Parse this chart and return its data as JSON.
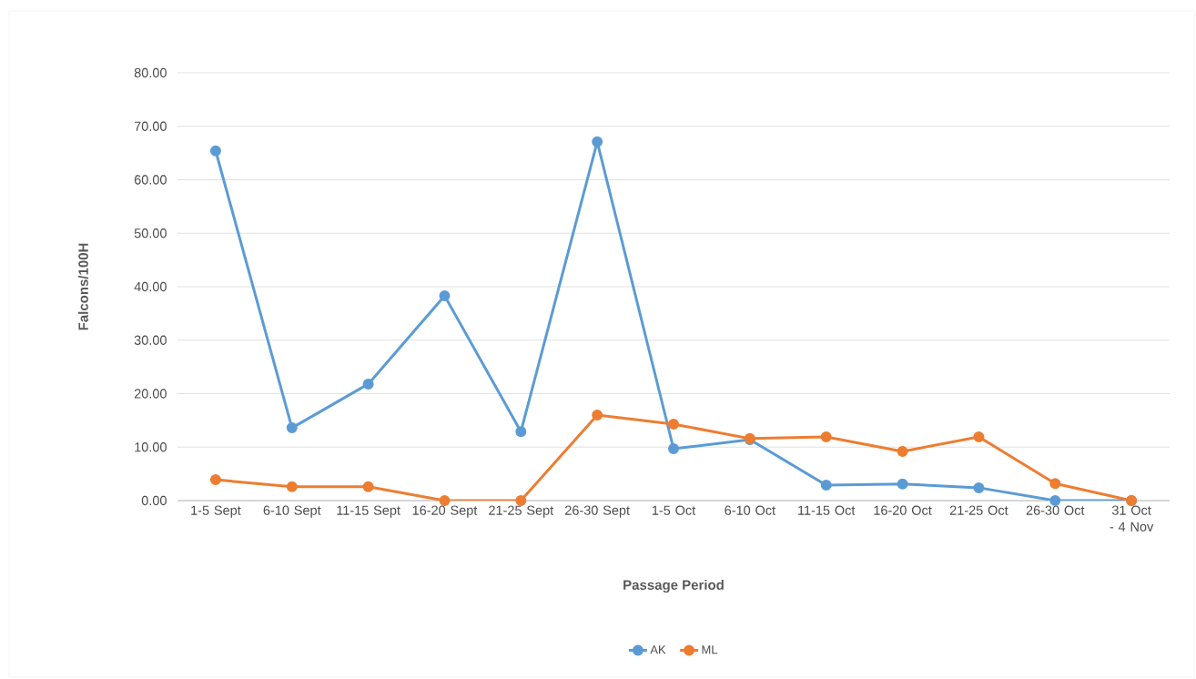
{
  "chart_data": {
    "type": "line",
    "xlabel": "Passage Period",
    "ylabel": "Falcons/100H",
    "categories": [
      "1-5 Sept",
      "6-10 Sept",
      "11-15 Sept",
      "16-20 Sept",
      "21-25 Sept",
      "26-30 Sept",
      "1-5 Oct",
      "6-10 Oct",
      "11-15 Oct",
      "16-20 Oct",
      "21-25 Oct",
      "26-30 Oct",
      "31 Oct - 4 Nov"
    ],
    "series": [
      {
        "name": "AK",
        "color": "#5b9bd5",
        "values": [
          65.4,
          13.6,
          21.8,
          38.3,
          12.9,
          67.1,
          9.7,
          11.4,
          2.9,
          3.1,
          2.4,
          0,
          0
        ]
      },
      {
        "name": "ML",
        "color": "#ed7d31",
        "values": [
          3.9,
          2.6,
          2.6,
          0,
          0,
          16.0,
          14.3,
          11.6,
          11.9,
          9.2,
          11.9,
          3.2,
          0
        ]
      }
    ],
    "ylim": [
      0,
      80
    ],
    "yticks": [
      {
        "value": 0,
        "label": "0.00"
      },
      {
        "value": 10,
        "label": "10.00"
      },
      {
        "value": 20,
        "label": "20.00"
      },
      {
        "value": 30,
        "label": "30.00"
      },
      {
        "value": 40,
        "label": "40.00"
      },
      {
        "value": 50,
        "label": "50.00"
      },
      {
        "value": 60,
        "label": "60.00"
      },
      {
        "value": 70,
        "label": "70.00"
      },
      {
        "value": 80,
        "label": "80.00"
      }
    ],
    "grid": "y",
    "legend": "bottom",
    "marker": "circle",
    "line_style": "solid"
  }
}
